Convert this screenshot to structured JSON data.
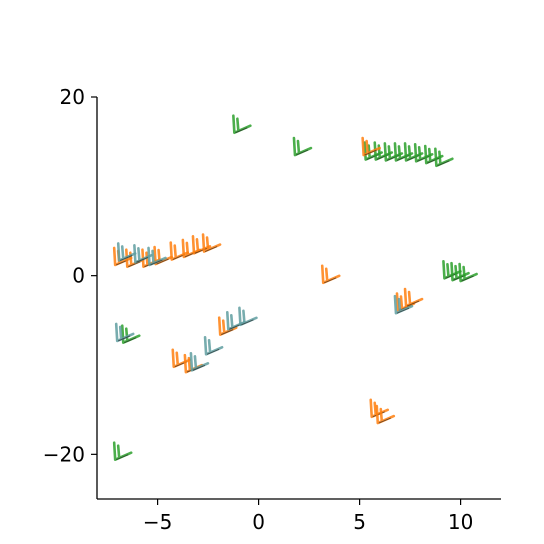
{
  "chart_data": {
    "type": "scatter",
    "title": "",
    "xlabel": "",
    "ylabel": "",
    "xlim": [
      -8,
      12
    ],
    "ylim": [
      -25,
      20
    ],
    "x_ticks": [
      -5,
      0,
      5,
      10
    ],
    "y_ticks": [
      -20,
      0,
      20
    ],
    "x_tick_labels": [
      "−5",
      "0",
      "5",
      "10"
    ],
    "y_tick_labels": [
      "−20",
      "0",
      "20"
    ],
    "grid": false,
    "legend": "none",
    "spines": [
      "left",
      "bottom"
    ],
    "marker": "wind-barb",
    "colors": {
      "orange": "#ff7f0e",
      "green": "#2ca02c",
      "teal": "#5f9ea0",
      "edge": "#1a1a1a"
    },
    "series": [
      {
        "color": "#2ca02c",
        "barbs": [
          {
            "x": -1.2,
            "y": 16.0
          },
          {
            "x": 1.8,
            "y": 13.5
          },
          {
            "x": 5.3,
            "y": 13.0
          },
          {
            "x": 5.8,
            "y": 13.0
          },
          {
            "x": 6.3,
            "y": 12.9
          },
          {
            "x": 6.8,
            "y": 12.9
          },
          {
            "x": 7.3,
            "y": 12.9
          },
          {
            "x": 7.8,
            "y": 12.8
          },
          {
            "x": 8.3,
            "y": 12.6
          },
          {
            "x": 8.8,
            "y": 12.3
          },
          {
            "x": 9.2,
            "y": -0.3
          },
          {
            "x": 9.6,
            "y": -0.5
          },
          {
            "x": 10.0,
            "y": -0.6
          },
          {
            "x": -6.7,
            "y": -7.5
          },
          {
            "x": -7.1,
            "y": -20.6
          }
        ]
      },
      {
        "color": "#ff7f0e",
        "barbs": [
          {
            "x": -7.1,
            "y": 1.2
          },
          {
            "x": -6.5,
            "y": 1.0
          },
          {
            "x": -5.7,
            "y": 1.0
          },
          {
            "x": -5.1,
            "y": 1.3
          },
          {
            "x": -4.3,
            "y": 1.8
          },
          {
            "x": -3.7,
            "y": 2.1
          },
          {
            "x": -3.2,
            "y": 2.5
          },
          {
            "x": -2.7,
            "y": 2.7
          },
          {
            "x": 3.2,
            "y": -0.8
          },
          {
            "x": 5.2,
            "y": 13.5
          },
          {
            "x": 5.6,
            "y": -15.8
          },
          {
            "x": 5.9,
            "y": -16.5
          },
          {
            "x": -4.2,
            "y": -10.2
          },
          {
            "x": -3.6,
            "y": -10.8
          },
          {
            "x": -1.9,
            "y": -6.6
          },
          {
            "x": 6.9,
            "y": -3.9
          },
          {
            "x": 7.3,
            "y": -3.4
          }
        ]
      },
      {
        "color": "#5f9ea0",
        "barbs": [
          {
            "x": -6.9,
            "y": 1.7
          },
          {
            "x": -6.1,
            "y": 1.5
          },
          {
            "x": -5.4,
            "y": 1.2
          },
          {
            "x": -7.0,
            "y": -7.3
          },
          {
            "x": -3.3,
            "y": -10.6
          },
          {
            "x": -2.6,
            "y": -8.8
          },
          {
            "x": -1.5,
            "y": -6.0
          },
          {
            "x": -0.9,
            "y": -5.5
          },
          {
            "x": 6.8,
            "y": -4.2
          }
        ]
      }
    ]
  }
}
